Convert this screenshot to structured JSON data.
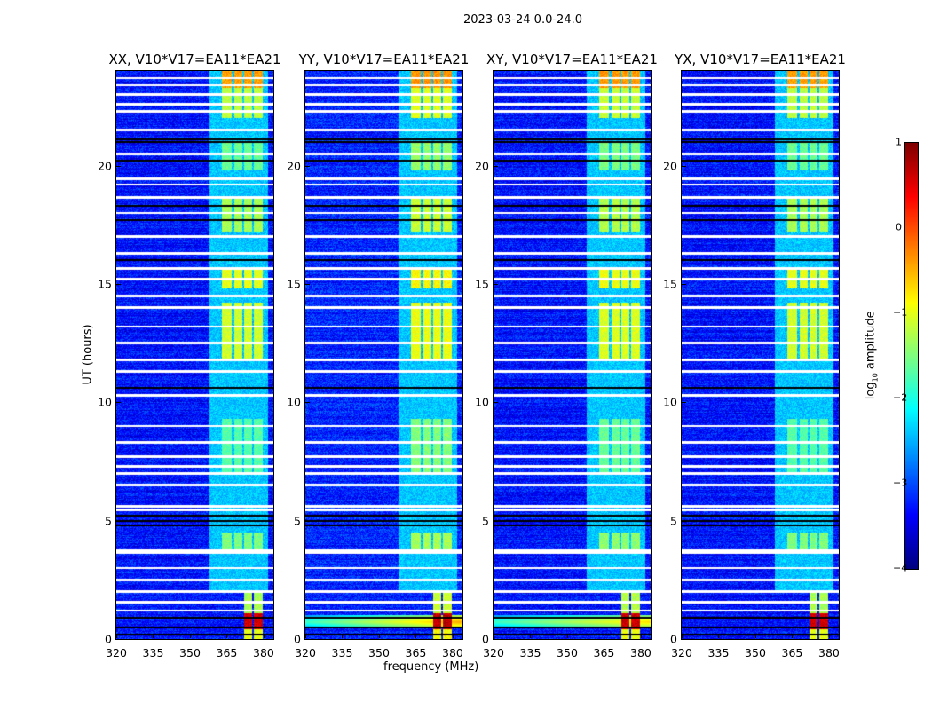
{
  "suptitle": "2023-03-24 0.0-24.0",
  "chart_data": {
    "type": "heatmap",
    "title": "2023-03-24 0.0-24.0",
    "xlabel": "frequency (MHz)",
    "ylabel": "UT (hours)",
    "xlim": [
      320,
      384
    ],
    "ylim": [
      0,
      24
    ],
    "xticks": [
      "320",
      "335",
      "350",
      "365",
      "380"
    ],
    "yticks": [
      "0",
      "5",
      "10",
      "15",
      "20"
    ],
    "panels": [
      {
        "title": "XX, V10*V17=EA11*EA21",
        "baseline": -3.3,
        "block_gain": 1.0,
        "low_band": 0.0
      },
      {
        "title": "YY, V10*V17=EA11*EA21",
        "baseline": -3.2,
        "block_gain": 1.15,
        "low_band": 1.0
      },
      {
        "title": "XY, V10*V17=EA11*EA21",
        "baseline": -3.3,
        "block_gain": 1.05,
        "low_band": 0.8
      },
      {
        "title": "YX, V10*V17=EA11*EA21",
        "baseline": -3.3,
        "block_gain": 1.0,
        "low_band": 0.0
      }
    ],
    "rfi_channels_mhz": [
      [
        363,
        367
      ],
      [
        368,
        371.5
      ],
      [
        372,
        375.5
      ],
      [
        376,
        379.5
      ]
    ],
    "rfi_periods": [
      {
        "t": [
          0.0,
          0.5
        ],
        "level": -1.0,
        "channels": [
          2,
          3
        ]
      },
      {
        "t": [
          0.4,
          1.1
        ],
        "level": 0.6,
        "channels": [
          2,
          3
        ]
      },
      {
        "t": [
          1.1,
          2.0
        ],
        "level": -1.3,
        "channels": [
          2,
          3
        ]
      },
      {
        "t": [
          3.6,
          4.5
        ],
        "level": -1.5,
        "channels": [
          0,
          1,
          2,
          3
        ]
      },
      {
        "t": [
          7.0,
          9.3
        ],
        "level": -1.7,
        "channels": [
          0,
          1,
          2,
          3
        ]
      },
      {
        "t": [
          11.8,
          14.2
        ],
        "level": -1.1,
        "channels": [
          0,
          1,
          2,
          3
        ]
      },
      {
        "t": [
          14.8,
          15.6
        ],
        "level": -1.0,
        "channels": [
          0,
          1,
          2,
          3
        ]
      },
      {
        "t": [
          17.2,
          18.6
        ],
        "level": -1.3,
        "channels": [
          0,
          1,
          2,
          3
        ]
      },
      {
        "t": [
          19.8,
          21.0
        ],
        "level": -1.6,
        "channels": [
          0,
          1,
          2,
          3
        ]
      },
      {
        "t": [
          22.0,
          24.0
        ],
        "level": -1.2,
        "channels": [
          0,
          1,
          2,
          3
        ]
      },
      {
        "t": [
          23.3,
          24.0
        ],
        "level": -0.4,
        "channels": [
          0,
          1,
          2,
          3
        ]
      }
    ],
    "flagged_hours": [
      1.2,
      1.55,
      2.0,
      2.5,
      3.0,
      3.65,
      3.75,
      5.45,
      5.6,
      6.5,
      7.0,
      7.3,
      7.7,
      8.3,
      9.0,
      10.3,
      11.3,
      11.8,
      12.5,
      13.2,
      14.0,
      14.5,
      15.2,
      15.65,
      16.3,
      17.0,
      18.0,
      18.65,
      19.2,
      19.45,
      20.5,
      21.5,
      22.3,
      22.6,
      23.0,
      23.4,
      23.7
    ],
    "dropout_hours": [
      0.2,
      0.5,
      0.9,
      4.8,
      5.0,
      5.2,
      10.6,
      16.0,
      17.7,
      18.3,
      20.2,
      21.0,
      21.1
    ],
    "colorbar": {
      "label": "log10 amplitude",
      "range": [
        -4,
        1
      ],
      "ticks": [
        "1",
        "0",
        "−1",
        "−2",
        "−3",
        "−4"
      ],
      "colormap": "jet"
    }
  }
}
